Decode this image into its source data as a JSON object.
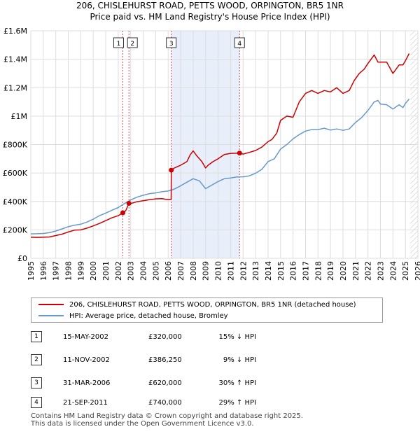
{
  "title_line1": "206, CHISLEHURST ROAD, PETTS WOOD, ORPINGTON, BR5 1NR",
  "title_line2": "Price paid vs. HM Land Registry's House Price Index (HPI)",
  "colors": {
    "property": "#cc0000",
    "hpi": "#6699cc",
    "shade": "#e8eefa",
    "grid": "#dddddd",
    "hatch": "#999999"
  },
  "chart_data": {
    "type": "line",
    "title": "206, CHISLEHURST ROAD, PETTS WOOD, ORPINGTON, BR5 1NR — Price paid vs. HM Land Registry's House Price Index (HPI)",
    "xlim": [
      1995,
      2026
    ],
    "ylim": [
      0,
      1600000
    ],
    "x_ticks": [
      1995,
      1996,
      1997,
      1998,
      1999,
      2000,
      2001,
      2002,
      2003,
      2004,
      2005,
      2006,
      2007,
      2008,
      2009,
      2010,
      2011,
      2012,
      2013,
      2014,
      2015,
      2016,
      2017,
      2018,
      2019,
      2020,
      2021,
      2022,
      2023,
      2024,
      2025,
      2026
    ],
    "y_ticks": [
      {
        "value": 0,
        "label": "£0"
      },
      {
        "value": 200000,
        "label": "£200K"
      },
      {
        "value": 400000,
        "label": "£400K"
      },
      {
        "value": 600000,
        "label": "£600K"
      },
      {
        "value": 800000,
        "label": "£800K"
      },
      {
        "value": 1000000,
        "label": "£1M"
      },
      {
        "value": 1200000,
        "label": "£1.2M"
      },
      {
        "value": 1400000,
        "label": "£1.4M"
      },
      {
        "value": 1600000,
        "label": "£1.6M"
      }
    ],
    "shaded_region": [
      2006.25,
      2011.72
    ],
    "hatched_from": 2025.4,
    "series": [
      {
        "name": "206, CHISLEHURST ROAD, PETTS WOOD, ORPINGTON, BR5 1NR (detached house)",
        "color": "#cc0000",
        "points": [
          [
            1995.0,
            148000
          ],
          [
            1995.5,
            147000
          ],
          [
            1996.0,
            148000
          ],
          [
            1996.5,
            150000
          ],
          [
            1997.0,
            160000
          ],
          [
            1997.5,
            170000
          ],
          [
            1998.0,
            185000
          ],
          [
            1998.5,
            198000
          ],
          [
            1999.0,
            200000
          ],
          [
            1999.5,
            212000
          ],
          [
            2000.0,
            228000
          ],
          [
            2000.5,
            245000
          ],
          [
            2001.0,
            265000
          ],
          [
            2001.5,
            285000
          ],
          [
            2002.0,
            300000
          ],
          [
            2002.37,
            320000
          ],
          [
            2002.6,
            335000
          ],
          [
            2002.86,
            386250
          ],
          [
            2003.0,
            385000
          ],
          [
            2003.5,
            398000
          ],
          [
            2004.0,
            405000
          ],
          [
            2004.5,
            412000
          ],
          [
            2005.0,
            418000
          ],
          [
            2005.5,
            420000
          ],
          [
            2006.0,
            412000
          ],
          [
            2006.24,
            415000
          ],
          [
            2006.25,
            620000
          ],
          [
            2006.5,
            635000
          ],
          [
            2007.0,
            655000
          ],
          [
            2007.5,
            680000
          ],
          [
            2007.75,
            725000
          ],
          [
            2008.0,
            755000
          ],
          [
            2008.3,
            720000
          ],
          [
            2008.7,
            680000
          ],
          [
            2009.0,
            635000
          ],
          [
            2009.2,
            655000
          ],
          [
            2009.6,
            680000
          ],
          [
            2010.0,
            700000
          ],
          [
            2010.5,
            730000
          ],
          [
            2011.0,
            738000
          ],
          [
            2011.72,
            740000
          ],
          [
            2012.0,
            733000
          ],
          [
            2012.5,
            745000
          ],
          [
            2013.0,
            758000
          ],
          [
            2013.5,
            782000
          ],
          [
            2014.0,
            820000
          ],
          [
            2014.3,
            835000
          ],
          [
            2014.7,
            880000
          ],
          [
            2015.0,
            970000
          ],
          [
            2015.5,
            1000000
          ],
          [
            2016.0,
            992000
          ],
          [
            2016.5,
            1100000
          ],
          [
            2017.0,
            1160000
          ],
          [
            2017.5,
            1180000
          ],
          [
            2018.0,
            1160000
          ],
          [
            2018.5,
            1180000
          ],
          [
            2019.0,
            1170000
          ],
          [
            2019.5,
            1200000
          ],
          [
            2020.0,
            1160000
          ],
          [
            2020.5,
            1180000
          ],
          [
            2020.9,
            1250000
          ],
          [
            2021.3,
            1300000
          ],
          [
            2021.7,
            1330000
          ],
          [
            2022.0,
            1370000
          ],
          [
            2022.5,
            1430000
          ],
          [
            2022.8,
            1380000
          ],
          [
            2023.0,
            1380000
          ],
          [
            2023.5,
            1380000
          ],
          [
            2024.0,
            1300000
          ],
          [
            2024.5,
            1360000
          ],
          [
            2024.8,
            1360000
          ],
          [
            2025.0,
            1390000
          ],
          [
            2025.3,
            1440000
          ]
        ]
      },
      {
        "name": "HPI: Average price, detached house, Bromley",
        "color": "#6699cc",
        "points": [
          [
            1995.0,
            172000
          ],
          [
            1995.5,
            173000
          ],
          [
            1996.0,
            175000
          ],
          [
            1996.5,
            180000
          ],
          [
            1997.0,
            192000
          ],
          [
            1997.5,
            207000
          ],
          [
            1998.0,
            222000
          ],
          [
            1998.5,
            233000
          ],
          [
            1999.0,
            240000
          ],
          [
            1999.5,
            255000
          ],
          [
            2000.0,
            275000
          ],
          [
            2000.5,
            300000
          ],
          [
            2001.0,
            318000
          ],
          [
            2001.5,
            338000
          ],
          [
            2002.0,
            357000
          ],
          [
            2002.5,
            385000
          ],
          [
            2003.0,
            410000
          ],
          [
            2003.5,
            430000
          ],
          [
            2004.0,
            443000
          ],
          [
            2004.5,
            455000
          ],
          [
            2005.0,
            460000
          ],
          [
            2005.5,
            468000
          ],
          [
            2006.0,
            473000
          ],
          [
            2006.5,
            487000
          ],
          [
            2007.0,
            510000
          ],
          [
            2007.5,
            535000
          ],
          [
            2008.0,
            560000
          ],
          [
            2008.5,
            545000
          ],
          [
            2009.0,
            490000
          ],
          [
            2009.5,
            515000
          ],
          [
            2010.0,
            540000
          ],
          [
            2010.5,
            560000
          ],
          [
            2011.0,
            565000
          ],
          [
            2011.5,
            572000
          ],
          [
            2012.0,
            573000
          ],
          [
            2012.5,
            580000
          ],
          [
            2013.0,
            598000
          ],
          [
            2013.5,
            625000
          ],
          [
            2014.0,
            680000
          ],
          [
            2014.5,
            700000
          ],
          [
            2015.0,
            768000
          ],
          [
            2015.5,
            800000
          ],
          [
            2016.0,
            840000
          ],
          [
            2016.5,
            870000
          ],
          [
            2017.0,
            895000
          ],
          [
            2017.5,
            905000
          ],
          [
            2018.0,
            905000
          ],
          [
            2018.5,
            915000
          ],
          [
            2019.0,
            902000
          ],
          [
            2019.5,
            910000
          ],
          [
            2020.0,
            900000
          ],
          [
            2020.5,
            910000
          ],
          [
            2021.0,
            955000
          ],
          [
            2021.5,
            990000
          ],
          [
            2022.0,
            1040000
          ],
          [
            2022.5,
            1100000
          ],
          [
            2022.8,
            1110000
          ],
          [
            2023.0,
            1085000
          ],
          [
            2023.5,
            1080000
          ],
          [
            2024.0,
            1050000
          ],
          [
            2024.5,
            1080000
          ],
          [
            2024.8,
            1060000
          ],
          [
            2025.0,
            1090000
          ],
          [
            2025.3,
            1120000
          ]
        ]
      }
    ],
    "sale_markers": [
      {
        "label": "1",
        "x": 2002.37,
        "y": 320000
      },
      {
        "label": "2",
        "x": 2002.86,
        "y": 386250
      },
      {
        "label": "3",
        "x": 2006.25,
        "y": 620000
      },
      {
        "label": "4",
        "x": 2011.72,
        "y": 740000
      }
    ]
  },
  "legend": {
    "property_label": "206, CHISLEHURST ROAD, PETTS WOOD, ORPINGTON, BR5 1NR (detached house)",
    "hpi_label": "HPI: Average price, detached house, Bromley"
  },
  "sales": [
    {
      "num": "1",
      "date": "15-MAY-2002",
      "price": "£320,000",
      "hpi": "15% ↓ HPI"
    },
    {
      "num": "2",
      "date": "11-NOV-2002",
      "price": "£386,250",
      "hpi": "9% ↓ HPI"
    },
    {
      "num": "3",
      "date": "31-MAR-2006",
      "price": "£620,000",
      "hpi": "30% ↑ HPI"
    },
    {
      "num": "4",
      "date": "21-SEP-2011",
      "price": "£740,000",
      "hpi": "29% ↑ HPI"
    }
  ],
  "footer": {
    "line1": "Contains HM Land Registry data © Crown copyright and database right 2025.",
    "line2": "This data is licensed under the Open Government Licence v3.0."
  }
}
